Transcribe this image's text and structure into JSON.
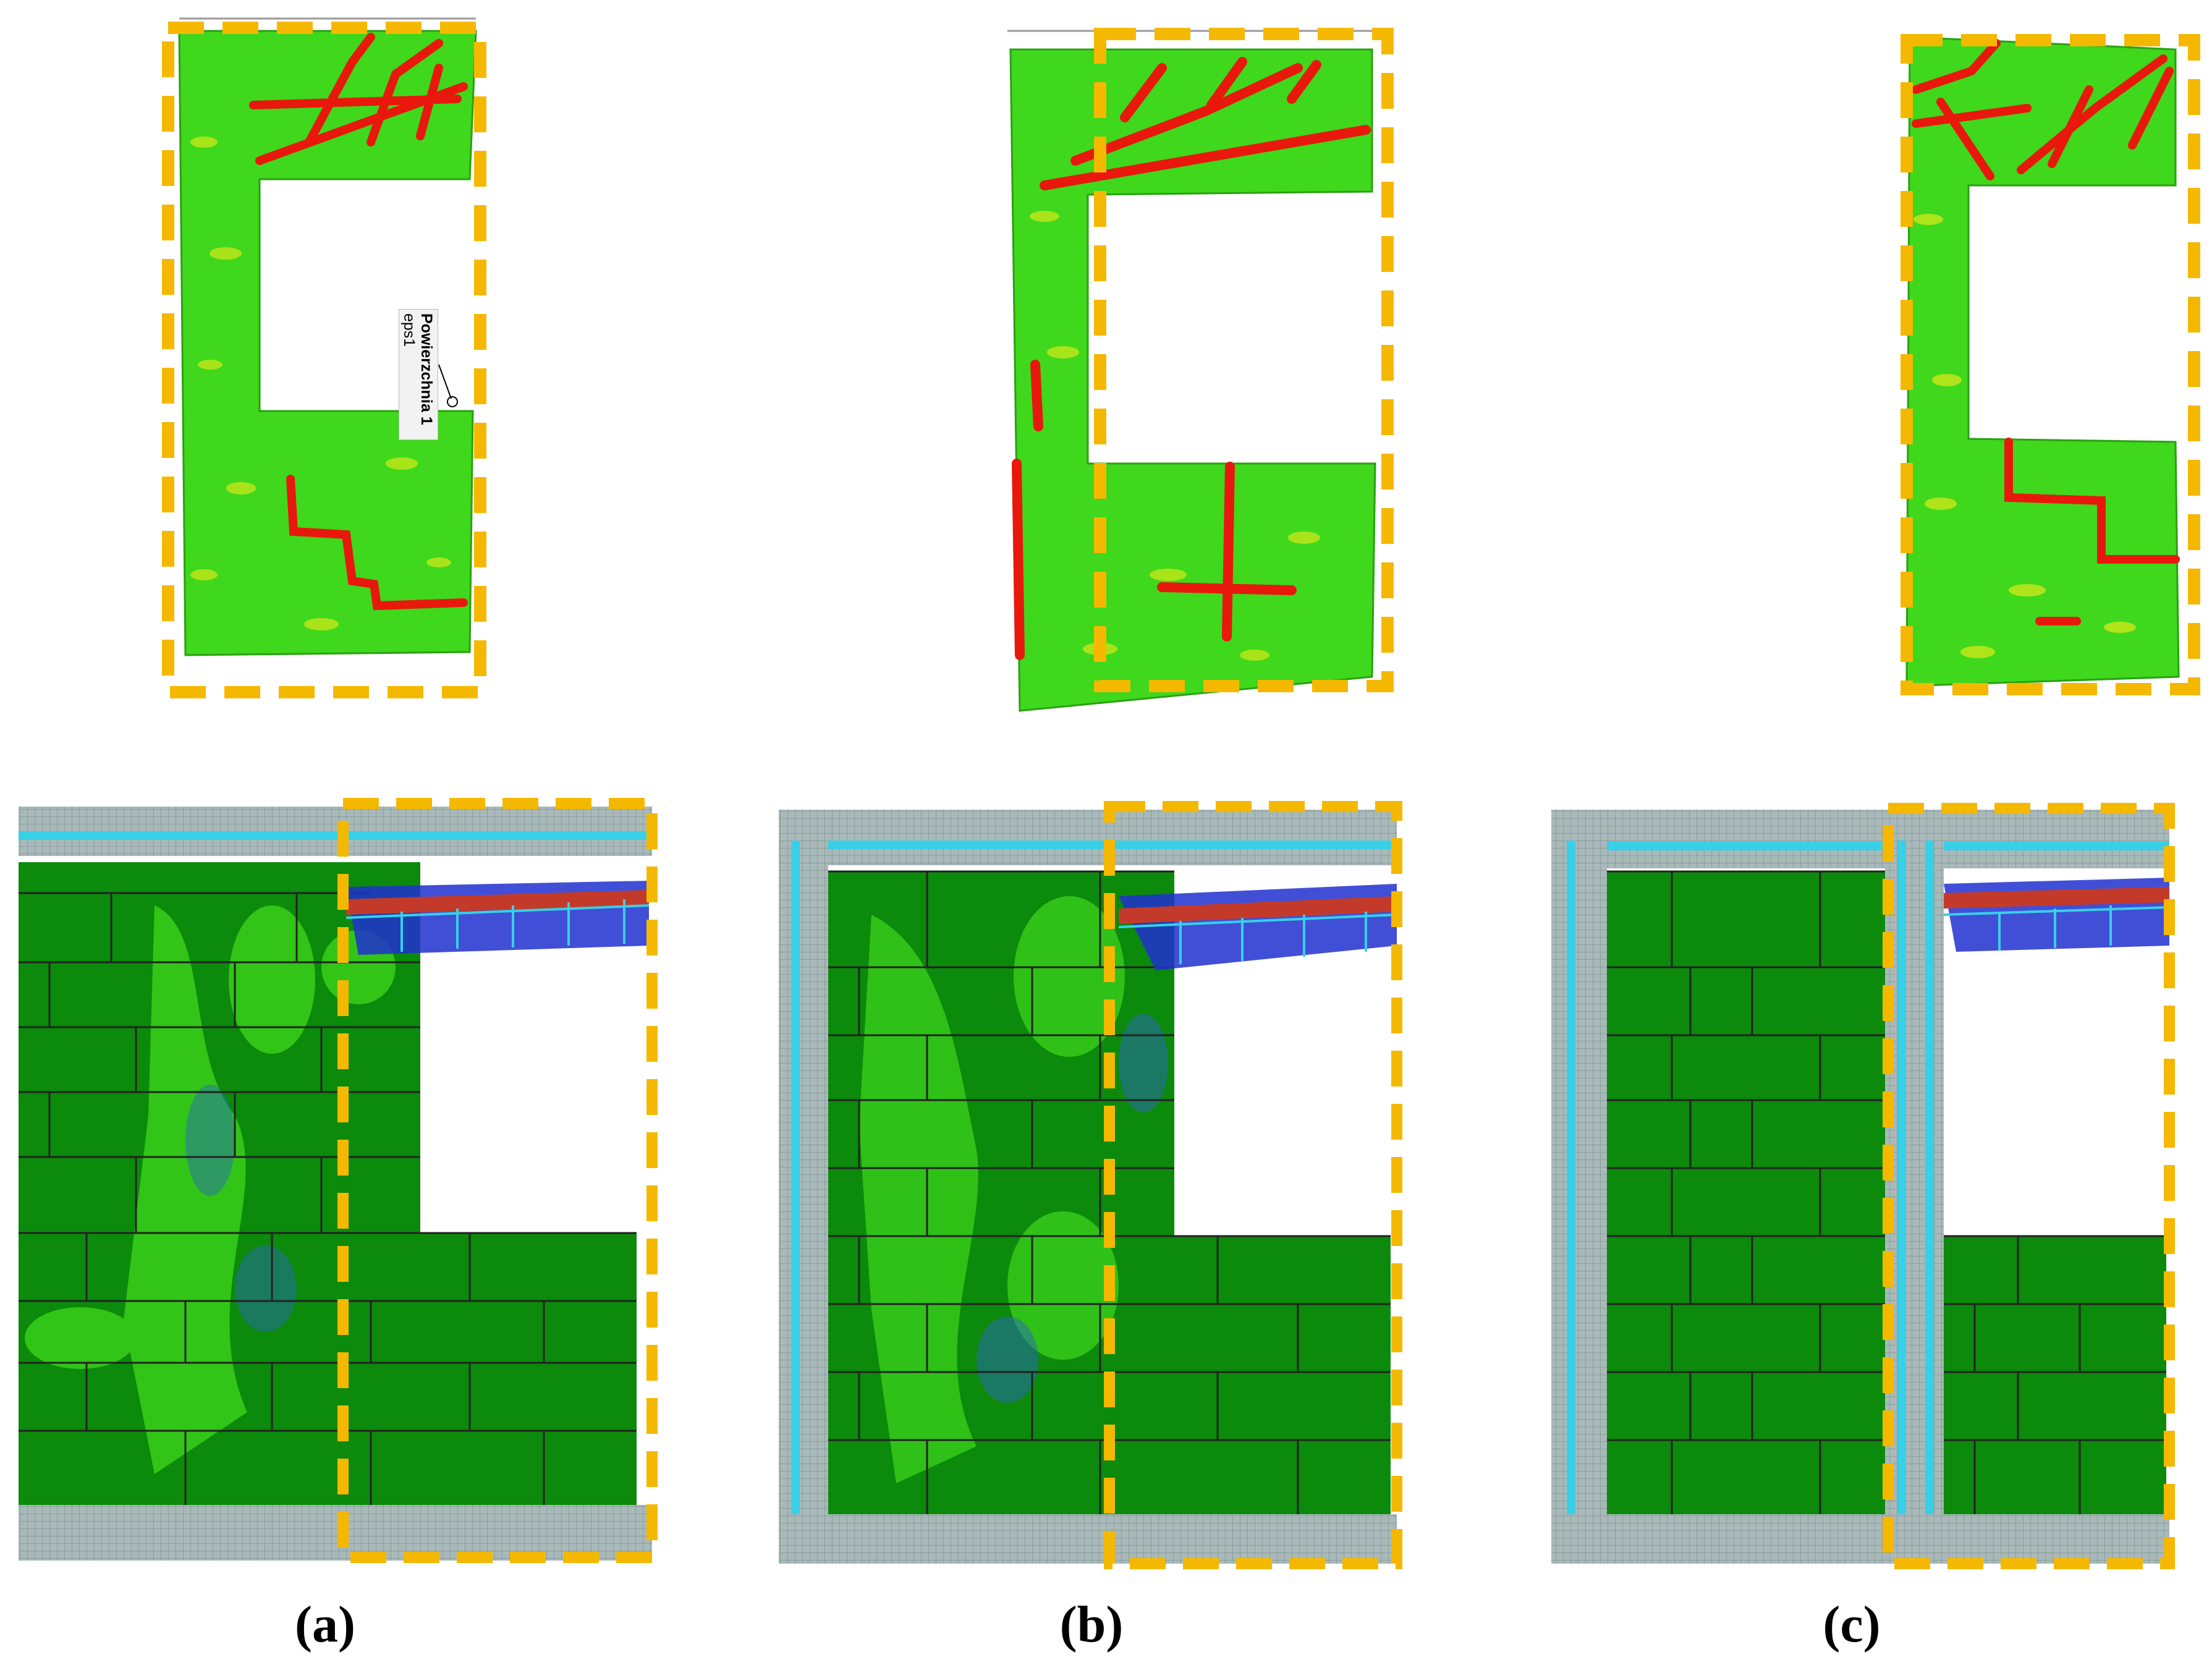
{
  "captions": {
    "a": "(a)",
    "b": "(b)",
    "c": "(c)"
  },
  "callout": {
    "title": "Powierzchnia 1",
    "subtitle": "eps1"
  },
  "colors": {
    "highlight_frame": "#f5b800",
    "crack": "#e8180c",
    "strain_low": "#3fd81c",
    "strain_mid": "#d7e81a",
    "brick_green": "#0b8a0b",
    "mortar_magenta": "#b0408a",
    "lintel_blue": "#2030d0",
    "mesh_cyan": "#38d0e6",
    "mesh_grey": "#a9b9b9"
  }
}
